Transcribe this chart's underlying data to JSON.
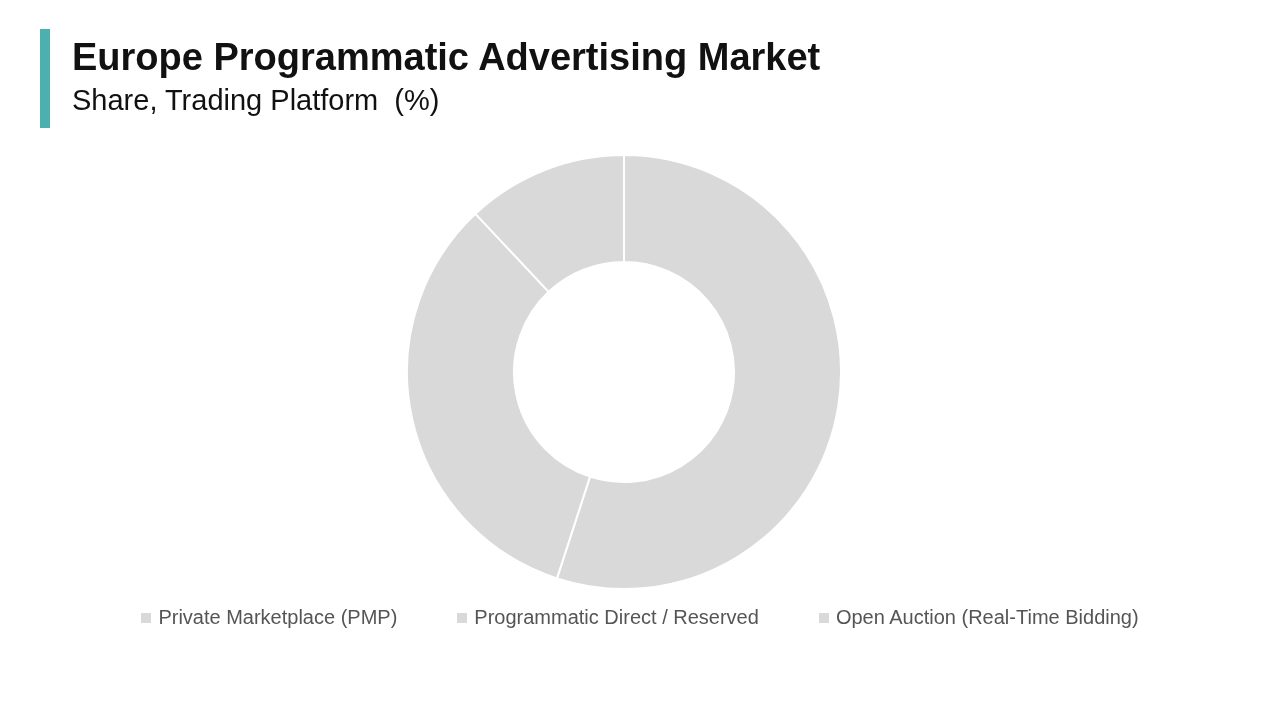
{
  "chart_data": {
    "type": "donut",
    "title": "Europe Programmatic Advertising Market",
    "subtitle": "Share, Trading Platform  (%)",
    "categories": [
      "Private Marketplace (PMP)",
      "Programmatic Direct / Reserved",
      "Open Auction (Real-Time Bidding)"
    ],
    "values": [
      55,
      33,
      12
    ],
    "colors": [
      "#d9d9d9",
      "#d9d9d9",
      "#d9d9d9"
    ],
    "legend": "bottom"
  }
}
